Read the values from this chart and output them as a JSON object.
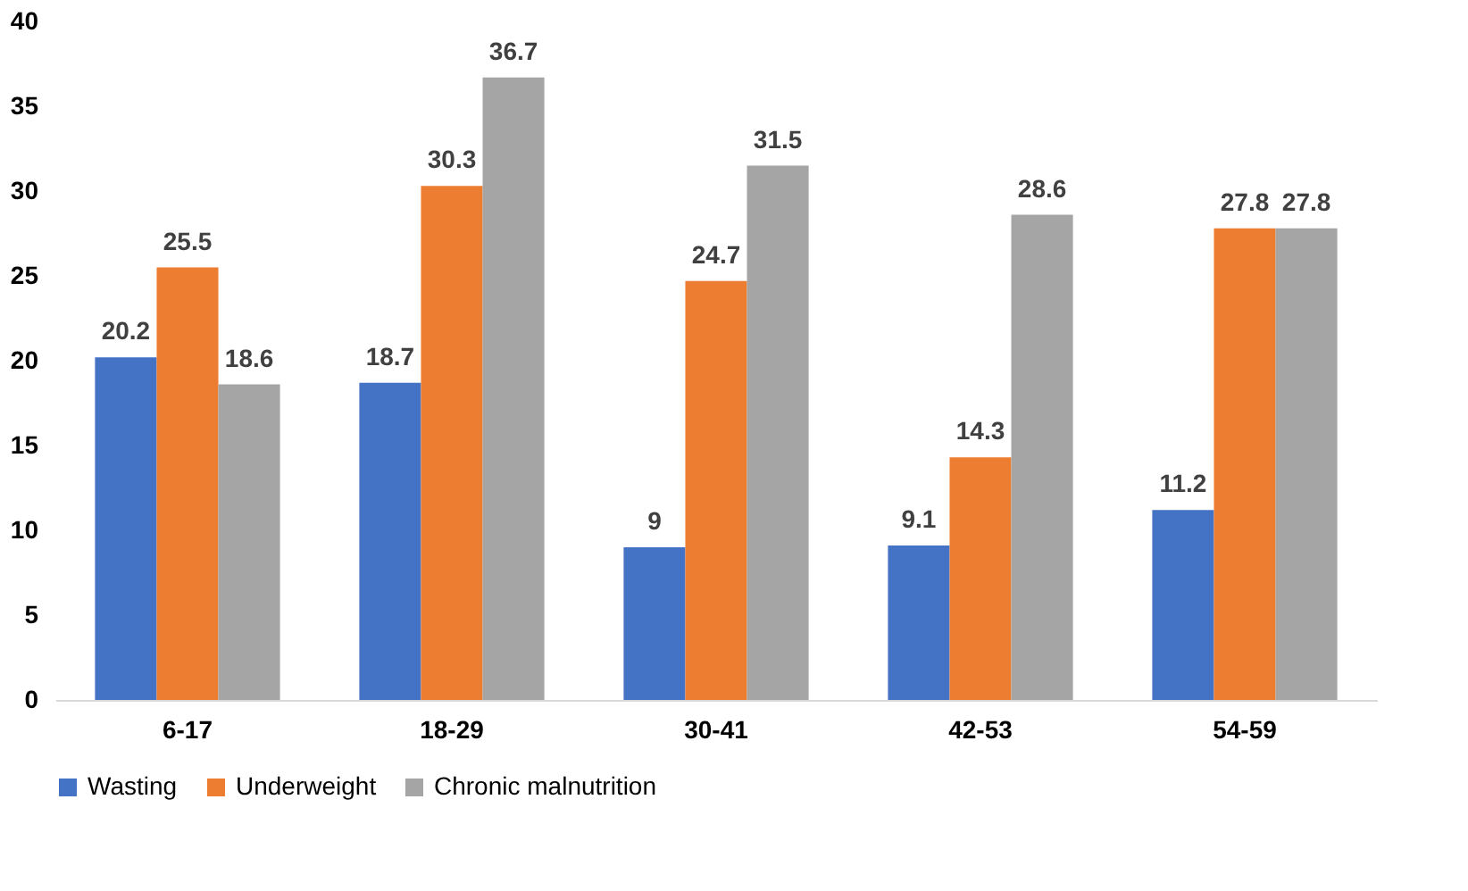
{
  "chart_data": {
    "type": "bar",
    "categories": [
      "6-17",
      "18-29",
      "30-41",
      "42-53",
      "54-59"
    ],
    "series": [
      {
        "name": "Wasting",
        "color": "#4472c4",
        "values": [
          20.2,
          18.7,
          9,
          9.1,
          11.2
        ]
      },
      {
        "name": "Underweight",
        "color": "#ed7d31",
        "values": [
          25.5,
          30.3,
          24.7,
          14.3,
          27.8
        ]
      },
      {
        "name": "Chronic malnutrition",
        "color": "#a5a5a5",
        "values": [
          18.6,
          36.7,
          31.5,
          28.6,
          27.8
        ]
      }
    ],
    "ylim": [
      0,
      40
    ],
    "yticks": [
      0,
      5,
      10,
      15,
      20,
      25,
      30,
      35,
      40
    ],
    "grid": false,
    "legend": "bottom",
    "data_labels": true
  }
}
